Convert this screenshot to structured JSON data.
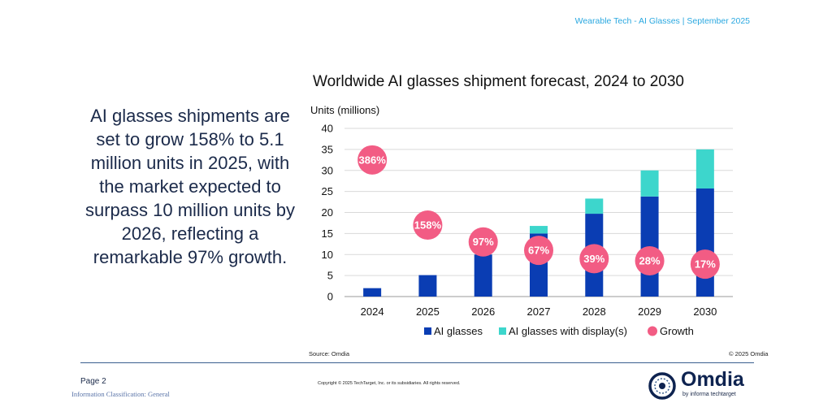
{
  "header": {
    "text": "Wearable Tech - AI Glasses  | September 2025"
  },
  "summary": {
    "text": "AI glasses shipments are set to grow 158% to 5.1 million units in 2025, with the market expected to surpass 10 million units by 2026, reflecting a remarkable 97% growth."
  },
  "colors": {
    "ai_glasses": "#0a3db3",
    "ai_glasses_display": "#3dd6cc",
    "growth": "#f25c84",
    "grid": "#d9d9d9",
    "header": "#2aa8e0"
  },
  "chart_data": {
    "type": "bar",
    "title": "Worldwide AI glasses shipment forecast, 2024 to 2030",
    "ylabel": "Units (millions)",
    "xlabel": "",
    "ylim": [
      0,
      40
    ],
    "yticks": [
      0,
      5,
      10,
      15,
      20,
      25,
      30,
      35,
      40
    ],
    "categories": [
      "2024",
      "2025",
      "2026",
      "2027",
      "2028",
      "2029",
      "2030"
    ],
    "series": [
      {
        "name": "AI glasses",
        "values": [
          2.0,
          5.1,
          10.0,
          15.0,
          19.7,
          23.8,
          25.7
        ]
      },
      {
        "name": "AI glasses with display(s)",
        "values": [
          0,
          0,
          0,
          1.8,
          3.6,
          6.2,
          9.3
        ]
      }
    ],
    "growth": {
      "name": "Growth",
      "labels": [
        "386%",
        "158%",
        "97%",
        "67%",
        "39%",
        "28%",
        "17%"
      ],
      "marker_y": [
        32.5,
        17,
        13,
        11,
        9,
        8.5,
        7.7
      ]
    },
    "legend": [
      "AI glasses",
      "AI glasses with display(s)",
      "Growth"
    ],
    "legend_position": "bottom",
    "grid": true
  },
  "footer": {
    "source": "Source: Omdia",
    "copyright_right": "© 2025 Omdia",
    "page": "Page 2",
    "classification": "Information Classification: General",
    "copyright": "Copyright © 2025 TechTarget, Inc. or its subsidiaries. All rights reserved.",
    "logo_text": "Omdia",
    "logo_sub": "by informa techtarget"
  }
}
